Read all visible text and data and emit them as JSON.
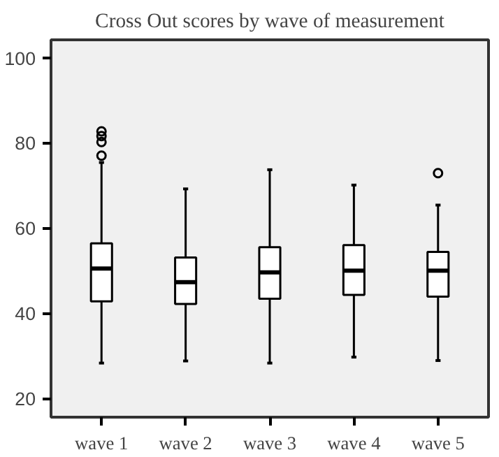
{
  "chart_data": {
    "type": "box",
    "title": "Cross Out scores by wave of measurement",
    "categories": [
      "wave 1",
      "wave 2",
      "wave 3",
      "wave 4",
      "wave 5"
    ],
    "boxes": [
      {
        "low": 28.3,
        "q1": 42.8,
        "median": 50.5,
        "q3": 56.4,
        "high": 75.4,
        "outliers": [
          82.7,
          81.6,
          80.2,
          77.0
        ]
      },
      {
        "low": 28.8,
        "q1": 42.2,
        "median": 47.3,
        "q3": 53.1,
        "high": 69.2
      },
      {
        "low": 28.3,
        "q1": 43.4,
        "median": 49.6,
        "q3": 55.5,
        "high": 73.7
      },
      {
        "low": 29.7,
        "q1": 44.3,
        "median": 50.0,
        "q3": 56.0,
        "high": 70.1
      },
      {
        "low": 28.9,
        "q1": 43.9,
        "median": 50.0,
        "q3": 54.4,
        "high": 65.4,
        "outliers": [
          72.9
        ]
      }
    ],
    "ylim": [
      15.6,
      104.2
    ],
    "yticks": [
      20,
      40,
      60,
      80,
      100
    ],
    "grid": false
  }
}
